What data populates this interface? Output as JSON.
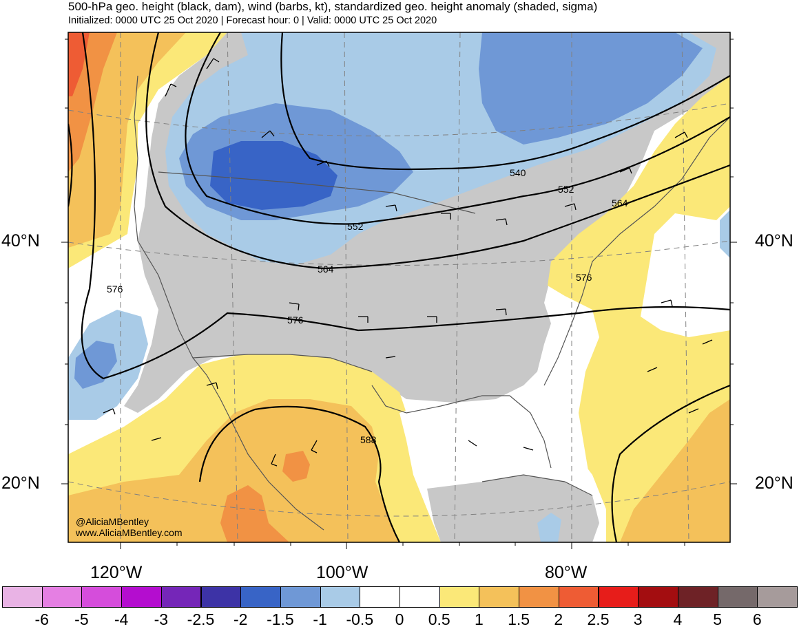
{
  "title": "500-hPa geo. height (black, dam), wind (barbs, kt), standardized geo. height anomaly (shaded, sigma)",
  "subtitle": "Initialized: 0000 UTC 25 Oct 2020 | Forecast hour: 0 | Valid: 0000 UTC 25 Oct 2020",
  "latitude_labels": {
    "lat40_left": "40°N",
    "lat40_right": "40°N",
    "lat20_left": "20°N",
    "lat20_right": "20°N"
  },
  "longitude_labels": {
    "lon120": "120°W",
    "lon100": "100°W",
    "lon80": "80°W"
  },
  "contour_labels": [
    "540",
    "552",
    "564",
    "576",
    "552",
    "564",
    "576",
    "576",
    "588"
  ],
  "credits": {
    "twitter": "@AliciaMBentley",
    "website": "www.AliciaMBentley.com"
  },
  "colorbar": {
    "colors": [
      "#e9b3e5",
      "#e57fe3",
      "#d54ddb",
      "#b40dcf",
      "#7526b8",
      "#3d33a6",
      "#3864c6",
      "#6f98d6",
      "#a9cbe7",
      "#ffffff",
      "#ffffff",
      "#fbe878",
      "#f4c15a",
      "#f19244",
      "#ee5c34",
      "#e71d1a",
      "#a30d10",
      "#6e2226",
      "#75696a",
      "#a69b9b"
    ],
    "labels": [
      "-6",
      "-5",
      "-4",
      "-3",
      "-2.5",
      "-2",
      "-1.5",
      "-1",
      "-0.5",
      "0",
      "0.5",
      "1",
      "1.5",
      "2",
      "2.5",
      "3",
      "4",
      "5",
      "6"
    ]
  }
}
